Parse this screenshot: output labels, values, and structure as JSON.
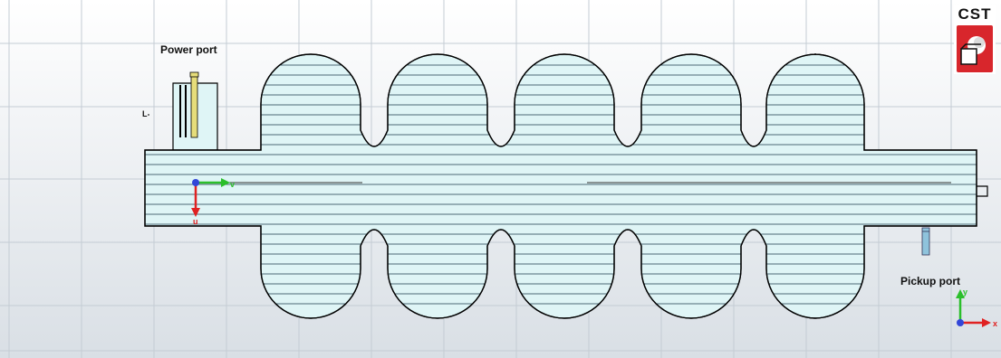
{
  "labels": {
    "power_port": "Power port",
    "pickup_port": "Pickup port",
    "side_marker": "L"
  },
  "logo": {
    "text": "CST",
    "accent": "#d8262c"
  },
  "axes": {
    "local": {
      "horizontal": "v",
      "vertical": "u"
    },
    "global": {
      "horizontal": "x",
      "vertical": "y"
    }
  },
  "colors": {
    "background_top": "#ffffff",
    "background_bottom": "#d9dfe5",
    "grid": "#c4ccd4",
    "body_fill": "#dff5f6",
    "outline": "#000000",
    "power_coupler": "#e6dd7a",
    "pickup_probe": "#8fc3dc",
    "axis_green": "#2bbf2b",
    "axis_red": "#e02222",
    "axis_blue": "#3246d8"
  }
}
